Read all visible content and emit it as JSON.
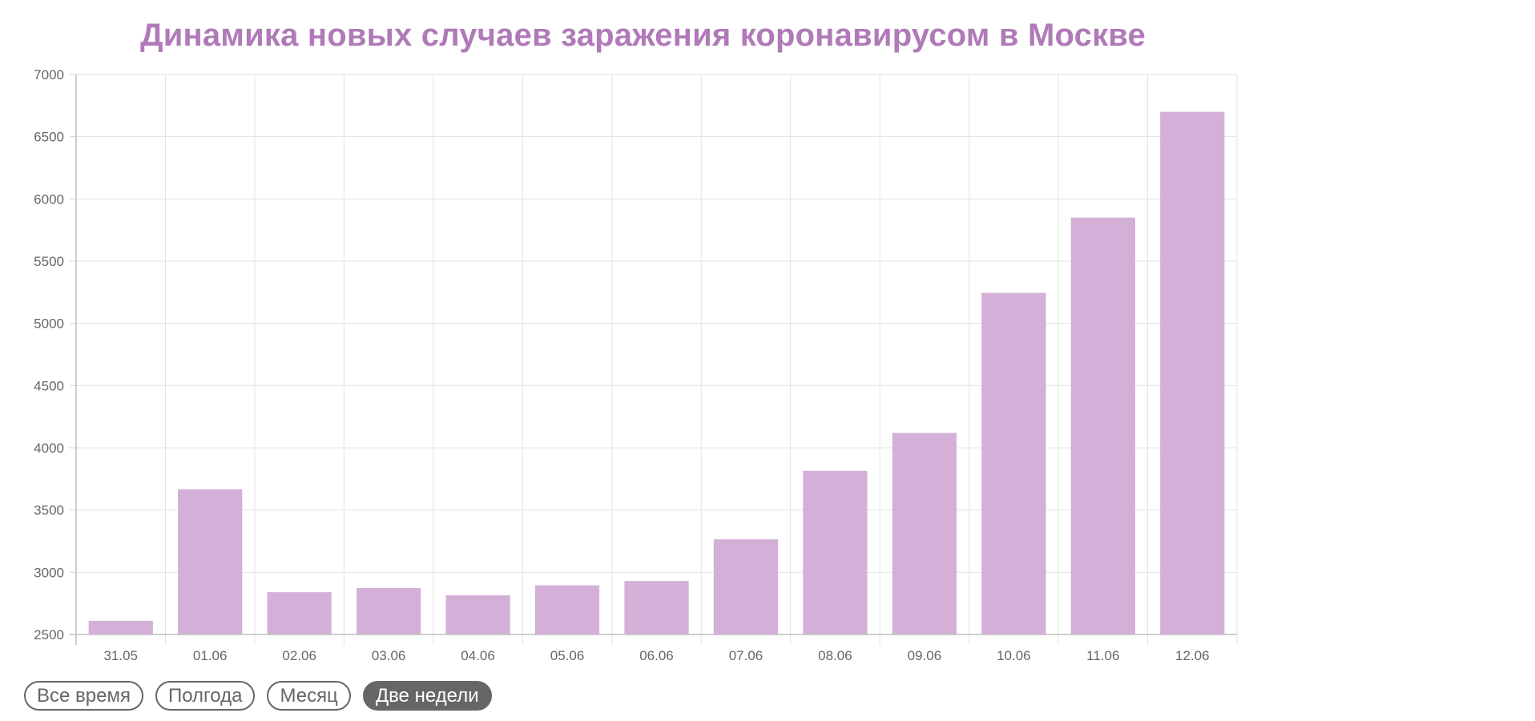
{
  "chart_data": {
    "type": "bar",
    "title": "Динамика новых случаев заражения коронавирусом в Москве",
    "categories": [
      "31.05",
      "01.06",
      "02.06",
      "03.06",
      "04.06",
      "05.06",
      "06.06",
      "07.06",
      "08.06",
      "09.06",
      "10.06",
      "11.06",
      "12.06"
    ],
    "values": [
      2610,
      3667,
      2840,
      2873,
      2815,
      2895,
      2930,
      3265,
      3815,
      4120,
      5245,
      5850,
      6700
    ],
    "ylim": [
      2500,
      7000
    ],
    "yticks": [
      "7000",
      "6500",
      "6000",
      "5500",
      "5000",
      "4500",
      "4000",
      "3500",
      "3000",
      "2500"
    ],
    "xlabel": "",
    "ylabel": "",
    "grid": true,
    "bar_color": "#d4b0d8",
    "title_color": "#b07ab8"
  },
  "range_selector": {
    "buttons": [
      {
        "label": "Все время",
        "active": false
      },
      {
        "label": "Полгода",
        "active": false
      },
      {
        "label": "Месяц",
        "active": false
      },
      {
        "label": "Две недели",
        "active": true
      }
    ]
  }
}
